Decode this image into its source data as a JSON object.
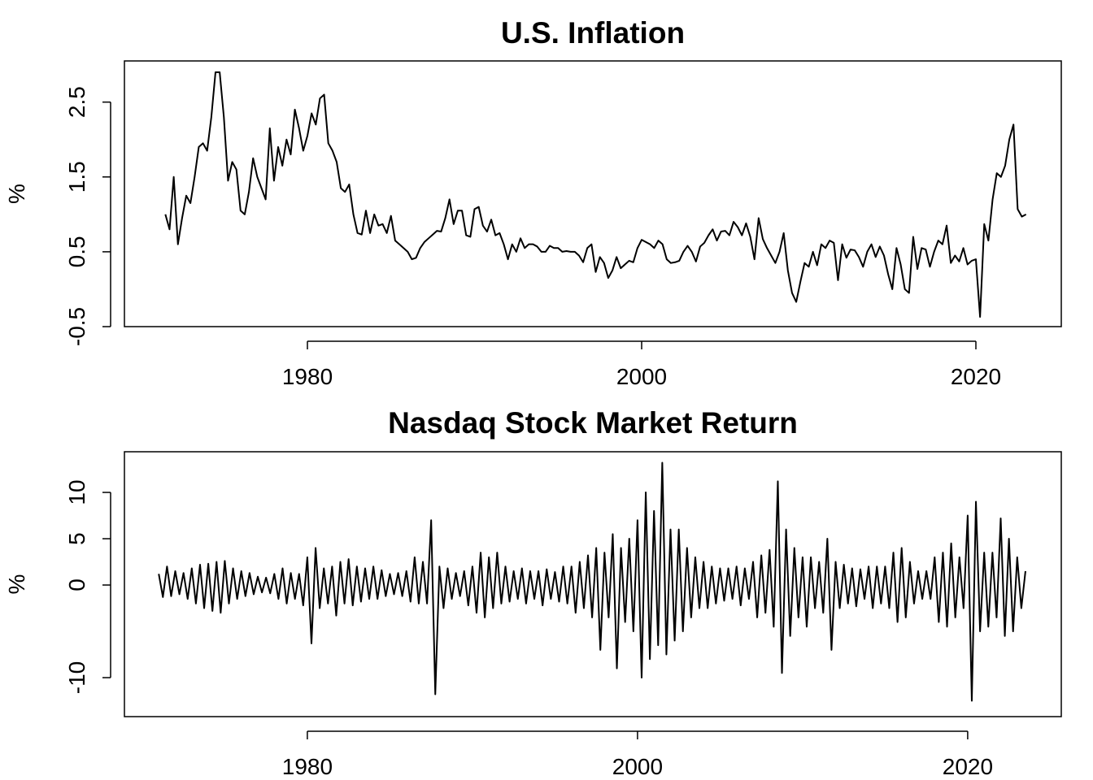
{
  "chart_data": [
    {
      "type": "line",
      "title": "U.S. Inflation",
      "y_label": "%",
      "color": "#000000",
      "xlim": [
        1969.05,
        2025.11
      ],
      "xticks": [
        1980,
        2000,
        2020
      ],
      "ylim": [
        -0.5,
        3.05
      ],
      "yticks": [
        -0.5,
        0.5,
        1.5,
        2.5
      ],
      "x": [
        1971.5,
        1971.75,
        1972,
        1972.25,
        1972.5,
        1972.75,
        1973,
        1973.25,
        1973.5,
        1973.75,
        1974,
        1974.25,
        1974.5,
        1974.75,
        1975,
        1975.25,
        1975.5,
        1975.75,
        1976,
        1976.25,
        1976.5,
        1976.75,
        1977,
        1977.25,
        1977.5,
        1977.75,
        1978,
        1978.25,
        1978.5,
        1978.75,
        1979,
        1979.25,
        1979.5,
        1979.75,
        1980,
        1980.25,
        1980.5,
        1980.75,
        1981,
        1981.25,
        1981.5,
        1981.75,
        1982,
        1982.25,
        1982.5,
        1982.75,
        1983,
        1983.25,
        1983.5,
        1983.75,
        1984,
        1984.25,
        1984.5,
        1984.75,
        1985,
        1985.25,
        1985.5,
        1985.75,
        1986,
        1986.25,
        1986.5,
        1986.75,
        1987,
        1987.25,
        1987.5,
        1987.75,
        1988,
        1988.25,
        1988.5,
        1988.75,
        1989,
        1989.25,
        1989.5,
        1989.75,
        1990,
        1990.25,
        1990.5,
        1990.75,
        1991,
        1991.25,
        1991.5,
        1991.75,
        1992,
        1992.25,
        1992.5,
        1992.75,
        1993,
        1993.25,
        1993.5,
        1993.75,
        1994,
        1994.25,
        1994.5,
        1994.75,
        1995,
        1995.25,
        1995.5,
        1995.75,
        1996,
        1996.25,
        1996.5,
        1996.75,
        1997,
        1997.25,
        1997.5,
        1997.75,
        1998,
        1998.25,
        1998.5,
        1998.75,
        1999,
        1999.25,
        1999.5,
        1999.75,
        2000,
        2000.25,
        2000.5,
        2000.75,
        2001,
        2001.25,
        2001.5,
        2001.75,
        2002,
        2002.25,
        2002.5,
        2002.75,
        2003,
        2003.25,
        2003.5,
        2003.75,
        2004,
        2004.25,
        2004.5,
        2004.75,
        2005,
        2005.25,
        2005.5,
        2005.75,
        2006,
        2006.25,
        2006.5,
        2006.75,
        2007,
        2007.25,
        2007.5,
        2007.75,
        2008,
        2008.25,
        2008.5,
        2008.75,
        2009,
        2009.25,
        2009.5,
        2009.75,
        2010,
        2010.25,
        2010.5,
        2010.75,
        2011,
        2011.25,
        2011.5,
        2011.75,
        2012,
        2012.25,
        2012.5,
        2012.75,
        2013,
        2013.25,
        2013.5,
        2013.75,
        2014,
        2014.25,
        2014.5,
        2014.75,
        2015,
        2015.25,
        2015.5,
        2015.75,
        2016,
        2016.25,
        2016.5,
        2016.75,
        2017,
        2017.25,
        2017.5,
        2017.75,
        2018,
        2018.25,
        2018.5,
        2018.75,
        2019,
        2019.25,
        2019.5,
        2019.75,
        2020,
        2020.25,
        2020.5,
        2020.75,
        2021,
        2021.25,
        2021.5,
        2021.75,
        2022,
        2022.25,
        2022.5,
        2022.75,
        2023
      ],
      "values": [
        1.0,
        0.8,
        1.5,
        0.6,
        0.95,
        1.25,
        1.15,
        1.5,
        1.9,
        1.95,
        1.85,
        2.3,
        2.9,
        2.9,
        2.3,
        1.45,
        1.7,
        1.6,
        1.05,
        1.0,
        1.3,
        1.75,
        1.5,
        1.35,
        1.2,
        2.15,
        1.45,
        1.9,
        1.65,
        2.0,
        1.8,
        2.4,
        2.15,
        1.85,
        2.05,
        2.35,
        2.2,
        2.55,
        2.6,
        1.95,
        1.85,
        1.7,
        1.35,
        1.3,
        1.4,
        1.0,
        0.75,
        0.73,
        1.05,
        0.75,
        1.0,
        0.85,
        0.87,
        0.75,
        0.98,
        0.65,
        0.6,
        0.55,
        0.5,
        0.4,
        0.42,
        0.55,
        0.63,
        0.68,
        0.73,
        0.78,
        0.77,
        0.95,
        1.2,
        0.87,
        1.05,
        1.05,
        0.72,
        0.7,
        1.07,
        1.1,
        0.85,
        0.77,
        0.93,
        0.72,
        0.75,
        0.6,
        0.4,
        0.6,
        0.5,
        0.68,
        0.55,
        0.6,
        0.6,
        0.57,
        0.5,
        0.5,
        0.58,
        0.55,
        0.55,
        0.5,
        0.51,
        0.5,
        0.5,
        0.45,
        0.36,
        0.55,
        0.6,
        0.23,
        0.43,
        0.35,
        0.15,
        0.25,
        0.43,
        0.28,
        0.33,
        0.38,
        0.36,
        0.55,
        0.66,
        0.63,
        0.6,
        0.55,
        0.65,
        0.6,
        0.4,
        0.35,
        0.36,
        0.38,
        0.5,
        0.58,
        0.5,
        0.37,
        0.57,
        0.62,
        0.72,
        0.8,
        0.65,
        0.77,
        0.78,
        0.72,
        0.9,
        0.83,
        0.72,
        0.88,
        0.7,
        0.4,
        0.95,
        0.67,
        0.55,
        0.45,
        0.35,
        0.5,
        0.75,
        0.25,
        -0.05,
        -0.17,
        0.1,
        0.35,
        0.3,
        0.5,
        0.32,
        0.6,
        0.55,
        0.65,
        0.62,
        0.12,
        0.6,
        0.42,
        0.53,
        0.52,
        0.43,
        0.3,
        0.5,
        0.6,
        0.43,
        0.57,
        0.45,
        0.2,
        0.0,
        0.55,
        0.33,
        0.0,
        -0.05,
        0.7,
        0.27,
        0.55,
        0.53,
        0.3,
        0.5,
        0.65,
        0.6,
        0.85,
        0.35,
        0.45,
        0.37,
        0.55,
        0.33,
        0.38,
        0.4,
        -0.37,
        0.87,
        0.65,
        1.2,
        1.55,
        1.5,
        1.65,
        2.0,
        2.2,
        1.07,
        0.97,
        1.0
      ]
    },
    {
      "type": "line",
      "title": "Nasdaq Stock Market Return",
      "y_label": "%",
      "color": "#000000",
      "xlim": [
        1968.92,
        2025.67
      ],
      "xticks": [
        1980,
        2000,
        2020
      ],
      "ylim": [
        -14.21,
        14.39
      ],
      "yticks": [
        -10,
        0,
        5,
        10
      ],
      "x": [
        1971,
        1971.25,
        1971.5,
        1971.75,
        1972,
        1972.25,
        1972.5,
        1972.75,
        1973,
        1973.25,
        1973.5,
        1973.75,
        1974,
        1974.25,
        1974.5,
        1974.75,
        1975,
        1975.25,
        1975.5,
        1975.75,
        1976,
        1976.25,
        1976.5,
        1976.75,
        1977,
        1977.25,
        1977.5,
        1977.75,
        1978,
        1978.25,
        1978.5,
        1978.75,
        1979,
        1979.25,
        1979.5,
        1979.75,
        1980,
        1980.25,
        1980.5,
        1980.75,
        1981,
        1981.25,
        1981.5,
        1981.75,
        1982,
        1982.25,
        1982.5,
        1982.75,
        1983,
        1983.25,
        1983.5,
        1983.75,
        1984,
        1984.25,
        1984.5,
        1984.75,
        1985,
        1985.25,
        1985.5,
        1985.75,
        1986,
        1986.25,
        1986.5,
        1986.75,
        1987,
        1987.25,
        1987.5,
        1987.75,
        1988,
        1988.25,
        1988.5,
        1988.75,
        1989,
        1989.25,
        1989.5,
        1989.75,
        1990,
        1990.25,
        1990.5,
        1990.75,
        1991,
        1991.25,
        1991.5,
        1991.75,
        1992,
        1992.25,
        1992.5,
        1992.75,
        1993,
        1993.25,
        1993.5,
        1993.75,
        1994,
        1994.25,
        1994.5,
        1994.75,
        1995,
        1995.25,
        1995.5,
        1995.75,
        1996,
        1996.25,
        1996.5,
        1996.75,
        1997,
        1997.25,
        1997.5,
        1997.75,
        1998,
        1998.25,
        1998.5,
        1998.75,
        1999,
        1999.25,
        1999.5,
        1999.75,
        2000,
        2000.25,
        2000.5,
        2000.75,
        2001,
        2001.25,
        2001.5,
        2001.75,
        2002,
        2002.25,
        2002.5,
        2002.75,
        2003,
        2003.25,
        2003.5,
        2003.75,
        2004,
        2004.25,
        2004.5,
        2004.75,
        2005,
        2005.25,
        2005.5,
        2005.75,
        2006,
        2006.25,
        2006.5,
        2006.75,
        2007,
        2007.25,
        2007.5,
        2007.75,
        2008,
        2008.25,
        2008.5,
        2008.75,
        2009,
        2009.25,
        2009.5,
        2009.75,
        2010,
        2010.25,
        2010.5,
        2010.75,
        2011,
        2011.25,
        2011.5,
        2011.75,
        2012,
        2012.25,
        2012.5,
        2012.75,
        2013,
        2013.25,
        2013.5,
        2013.75,
        2014,
        2014.25,
        2014.5,
        2014.75,
        2015,
        2015.25,
        2015.5,
        2015.75,
        2016,
        2016.25,
        2016.5,
        2016.75,
        2017,
        2017.25,
        2017.5,
        2017.75,
        2018,
        2018.25,
        2018.5,
        2018.75,
        2019,
        2019.25,
        2019.5,
        2019.75,
        2020,
        2020.25,
        2020.5,
        2020.75,
        2021,
        2021.25,
        2021.5,
        2021.75,
        2022,
        2022.25,
        2022.5,
        2022.75,
        2023,
        2023.25,
        2023.5
      ],
      "values": [
        1.2,
        -1.3,
        2.0,
        -1.2,
        1.5,
        -1.0,
        1.3,
        -1.5,
        1.8,
        -2.0,
        2.2,
        -2.5,
        2.3,
        -2.8,
        2.5,
        -3.0,
        2.6,
        -2.0,
        1.8,
        -1.5,
        1.5,
        -1.2,
        1.3,
        -1.0,
        0.9,
        -0.8,
        0.8,
        -0.9,
        1.2,
        -1.5,
        1.8,
        -2.0,
        1.3,
        -1.5,
        1.2,
        -2.2,
        3.0,
        -6.3,
        4.0,
        -2.5,
        1.8,
        -2.0,
        2.0,
        -3.3,
        2.5,
        -2.0,
        2.8,
        -2.2,
        2.0,
        -1.8,
        1.8,
        -1.5,
        2.0,
        -1.5,
        1.6,
        -1.2,
        1.2,
        -1.0,
        1.3,
        -1.2,
        1.5,
        -1.8,
        3.0,
        -2.0,
        2.5,
        -2.0,
        7.0,
        -11.8,
        2.0,
        -2.5,
        1.8,
        -1.5,
        1.3,
        -1.2,
        1.5,
        -2.2,
        2.0,
        -3.0,
        3.5,
        -3.5,
        3.0,
        -2.5,
        3.5,
        -2.0,
        2.0,
        -1.8,
        1.5,
        -1.5,
        1.8,
        -2.0,
        1.5,
        -1.5,
        1.5,
        -2.2,
        1.7,
        -1.5,
        1.4,
        -1.8,
        2.0,
        -2.0,
        2.0,
        -3.0,
        2.5,
        -2.5,
        3.2,
        -3.5,
        4.0,
        -7.0,
        3.5,
        -3.5,
        5.5,
        -9.0,
        4.0,
        -4.0,
        5.0,
        -5.0,
        7.0,
        -10.0,
        10.0,
        -8.0,
        8.0,
        -6.5,
        13.2,
        -7.5,
        6.0,
        -6.0,
        6.0,
        -5.0,
        4.0,
        -3.5,
        3.0,
        -2.5,
        2.5,
        -2.5,
        2.0,
        -2.0,
        1.8,
        -1.7,
        1.8,
        -1.5,
        2.0,
        -2.2,
        1.8,
        -1.5,
        2.5,
        -3.5,
        3.2,
        -3.0,
        3.8,
        -4.5,
        11.2,
        -9.5,
        6.0,
        -5.5,
        4.0,
        -3.5,
        3.0,
        -4.5,
        3.0,
        -2.5,
        2.5,
        -3.0,
        5.0,
        -7.0,
        2.5,
        -2.5,
        2.2,
        -2.0,
        1.8,
        -2.3,
        1.7,
        -1.5,
        2.0,
        -2.5,
        2.0,
        -2.0,
        2.0,
        -2.5,
        3.5,
        -4.0,
        4.0,
        -3.5,
        2.5,
        -2.0,
        1.5,
        -1.5,
        1.5,
        -1.5,
        3.0,
        -4.0,
        3.5,
        -4.5,
        4.5,
        -3.5,
        3.0,
        -2.5,
        7.5,
        -12.5,
        9.0,
        -5.0,
        3.5,
        -4.5,
        3.5,
        -3.5,
        7.2,
        -5.5,
        5.0,
        -5.0,
        3.0,
        -2.5,
        1.5
      ]
    }
  ]
}
